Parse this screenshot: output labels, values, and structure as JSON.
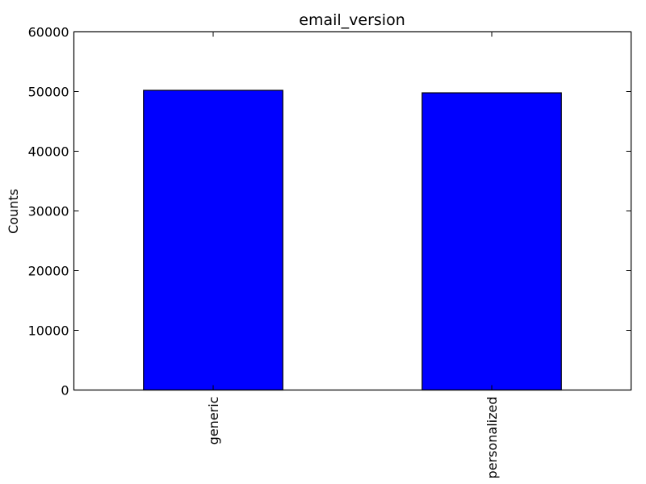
{
  "chart_data": {
    "type": "bar",
    "title": "email_version",
    "xlabel": "",
    "ylabel": "Counts",
    "categories": [
      "generic",
      "personalized"
    ],
    "values": [
      50209,
      49791
    ],
    "ylim": [
      0,
      60000
    ],
    "yticks": [
      "0",
      "10000",
      "20000",
      "30000",
      "40000",
      "50000",
      "60000"
    ],
    "grid": false,
    "bar_color": "#0000ff",
    "edge_color": "#000000"
  }
}
